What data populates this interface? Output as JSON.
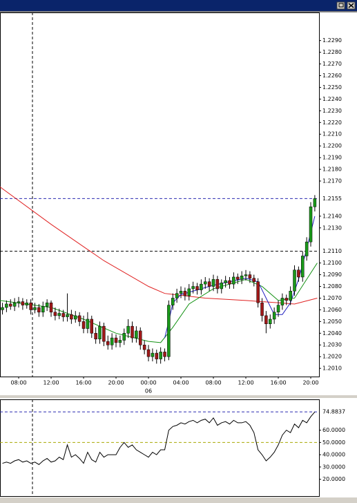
{
  "chart_data": [
    {
      "type": "candlestick",
      "xlim": [
        5.7,
        45.02
      ],
      "ylim": [
        1.2003,
        1.2314
      ],
      "xticks": [
        {
          "value": 8,
          "label": "08:00"
        },
        {
          "value": 12,
          "label": "12:00"
        },
        {
          "value": 16,
          "label": "16:00"
        },
        {
          "value": 20,
          "label": "20:00"
        },
        {
          "value": 24,
          "label": "00:00"
        },
        {
          "value": 28,
          "label": "04:00"
        },
        {
          "value": 32,
          "label": "08:00"
        },
        {
          "value": 36,
          "label": "12:00"
        },
        {
          "value": 40,
          "label": "16:00"
        },
        {
          "value": 44,
          "label": "20:00"
        }
      ],
      "date_labels": [
        {
          "value": 24,
          "label": "06"
        }
      ],
      "yticks": [
        {
          "value": 1.229,
          "label": "1.2290"
        },
        {
          "value": 1.228,
          "label": "1.2280"
        },
        {
          "value": 1.227,
          "label": "1.2270"
        },
        {
          "value": 1.226,
          "label": "1.2260"
        },
        {
          "value": 1.225,
          "label": "1.2250"
        },
        {
          "value": 1.224,
          "label": "1.2240"
        },
        {
          "value": 1.223,
          "label": "1.2230"
        },
        {
          "value": 1.222,
          "label": "1.2220"
        },
        {
          "value": 1.221,
          "label": "1.2210"
        },
        {
          "value": 1.22,
          "label": "1.2200"
        },
        {
          "value": 1.219,
          "label": "1.2190"
        },
        {
          "value": 1.218,
          "label": "1.2180"
        },
        {
          "value": 1.217,
          "label": "1.2170"
        },
        {
          "value": 1.214,
          "label": "1.2140"
        },
        {
          "value": 1.213,
          "label": "1.2130"
        },
        {
          "value": 1.21,
          "label": "1.2100"
        },
        {
          "value": 1.209,
          "label": "1.2090"
        },
        {
          "value": 1.208,
          "label": "1.2080"
        },
        {
          "value": 1.207,
          "label": "1.2070"
        },
        {
          "value": 1.206,
          "label": "1.2060"
        },
        {
          "value": 1.205,
          "label": "1.2050"
        },
        {
          "value": 1.204,
          "label": "1.2040"
        },
        {
          "value": 1.203,
          "label": "1.2030"
        },
        {
          "value": 1.202,
          "label": "1.2020"
        },
        {
          "value": 1.201,
          "label": "1.2010"
        }
      ],
      "levels": [
        {
          "value": 1.2155,
          "label": "1.2155",
          "color": "#2828b0"
        },
        {
          "value": 1.211,
          "label": "1.2110",
          "color": "#000000"
        }
      ],
      "crosshair_x": 9.7,
      "up_color": "#1a9a1a",
      "down_color": "#a01818",
      "x": [
        6,
        6.5,
        7,
        7.5,
        8,
        8.5,
        9,
        9.5,
        10,
        10.5,
        11,
        11.5,
        12,
        12.5,
        13,
        13.5,
        14,
        14.5,
        15,
        15.5,
        16,
        16.5,
        17,
        17.5,
        18,
        18.5,
        19,
        19.5,
        20,
        20.5,
        21,
        21.5,
        22,
        22.5,
        23,
        23.5,
        24,
        24.5,
        25,
        25.5,
        26,
        26.5,
        27,
        27.5,
        28,
        28.5,
        29,
        29.5,
        30,
        30.5,
        31,
        31.5,
        32,
        32.5,
        33,
        33.5,
        34,
        34.5,
        35,
        35.5,
        36,
        36.5,
        37,
        37.5,
        38,
        38.5,
        39,
        39.5,
        40,
        40.5,
        41,
        41.5,
        42,
        42.5,
        43,
        43.5,
        44,
        44.5
      ],
      "open": [
        1.206,
        1.2062,
        1.2065,
        1.2063,
        1.2066,
        1.2067,
        1.2064,
        1.2066,
        1.206,
        1.2062,
        1.2058,
        1.2063,
        1.2066,
        1.2058,
        1.2055,
        1.2057,
        1.2054,
        1.2056,
        1.2052,
        1.2055,
        1.205,
        1.2044,
        1.2052,
        1.204,
        1.2035,
        1.2046,
        1.2033,
        1.203,
        1.2036,
        1.2032,
        1.2034,
        1.204,
        1.2046,
        1.2036,
        1.2042,
        1.203,
        1.2026,
        1.202,
        1.2023,
        1.2018,
        1.2024,
        1.202,
        1.2064,
        1.207,
        1.2074,
        1.2076,
        1.2072,
        1.2078,
        1.208,
        1.2077,
        1.2082,
        1.2084,
        1.208,
        1.2086,
        1.2078,
        1.2083,
        1.2085,
        1.2082,
        1.2088,
        1.2086,
        1.2089,
        1.209,
        1.2087,
        1.2084,
        1.2066,
        1.2055,
        1.2048,
        1.2052,
        1.2058,
        1.2064,
        1.207,
        1.2068,
        1.2076,
        1.2094,
        1.2088,
        1.2106,
        1.2118,
        1.2148
      ],
      "high": [
        1.2066,
        1.2068,
        1.2069,
        1.207,
        1.2071,
        1.207,
        1.2069,
        1.2069,
        1.2066,
        1.2065,
        1.2067,
        1.2069,
        1.2068,
        1.2062,
        1.2061,
        1.206,
        1.2074,
        1.206,
        1.2059,
        1.2058,
        1.2055,
        1.2058,
        1.2055,
        1.2045,
        1.205,
        1.2049,
        1.2038,
        1.204,
        1.2039,
        1.2038,
        1.2044,
        1.2052,
        1.205,
        1.2046,
        1.2045,
        1.2034,
        1.203,
        1.2027,
        1.2026,
        1.2028,
        1.2027,
        1.2068,
        1.2074,
        1.2078,
        1.208,
        1.2079,
        1.2082,
        1.2084,
        1.2083,
        1.2086,
        1.2088,
        1.2087,
        1.209,
        1.2089,
        1.2086,
        1.2089,
        1.2088,
        1.2092,
        1.2091,
        1.2093,
        1.2094,
        1.2093,
        1.209,
        1.2087,
        1.207,
        1.2059,
        1.2056,
        1.2062,
        1.2068,
        1.2074,
        1.2073,
        1.208,
        1.2098,
        1.2097,
        1.211,
        1.2122,
        1.2152,
        1.2158
      ],
      "low": [
        1.2056,
        1.2058,
        1.206,
        1.2059,
        1.2062,
        1.206,
        1.2061,
        1.2056,
        1.2057,
        1.2054,
        1.2054,
        1.2059,
        1.2054,
        1.2051,
        1.2052,
        1.205,
        1.205,
        1.2048,
        1.2049,
        1.2046,
        1.204,
        1.204,
        1.2036,
        1.2031,
        1.2031,
        1.2029,
        1.2026,
        1.2026,
        1.2028,
        1.2028,
        1.203,
        1.2036,
        1.2032,
        1.2032,
        1.2026,
        1.2022,
        1.2016,
        1.2016,
        1.2014,
        1.2014,
        1.2016,
        1.2017,
        1.206,
        1.2066,
        1.207,
        1.2068,
        1.2068,
        1.2074,
        1.2073,
        1.2073,
        1.2078,
        1.2076,
        1.2076,
        1.2074,
        1.2074,
        1.2079,
        1.2078,
        1.2078,
        1.2082,
        1.2082,
        1.2085,
        1.2083,
        1.208,
        1.2062,
        1.205,
        1.204,
        1.2044,
        1.2048,
        1.2054,
        1.206,
        1.2064,
        1.2064,
        1.2072,
        1.2084,
        1.2084,
        1.2102,
        1.2114,
        1.2144
      ],
      "close": [
        1.2062,
        1.2065,
        1.2063,
        1.2066,
        1.2067,
        1.2064,
        1.2066,
        1.206,
        1.2062,
        1.2058,
        1.2063,
        1.2066,
        1.2058,
        1.2055,
        1.2057,
        1.2054,
        1.2056,
        1.2052,
        1.2055,
        1.205,
        1.2044,
        1.2052,
        1.204,
        1.2035,
        1.2046,
        1.2033,
        1.203,
        1.2036,
        1.2032,
        1.2034,
        1.204,
        1.2046,
        1.2036,
        1.2042,
        1.203,
        1.2026,
        1.202,
        1.2023,
        1.2018,
        1.2024,
        1.202,
        1.2064,
        1.207,
        1.2074,
        1.2076,
        1.2072,
        1.2078,
        1.208,
        1.2077,
        1.2082,
        1.2084,
        1.208,
        1.2086,
        1.2078,
        1.2083,
        1.2085,
        1.2082,
        1.2088,
        1.2086,
        1.2089,
        1.209,
        1.2087,
        1.2084,
        1.2066,
        1.2055,
        1.2048,
        1.2052,
        1.2058,
        1.2064,
        1.207,
        1.2068,
        1.2076,
        1.2094,
        1.2088,
        1.2106,
        1.2118,
        1.2148,
        1.2155
      ],
      "overlays": [
        {
          "color": "#e02020",
          "x": [
            5.7,
            12,
            18.5,
            24,
            26,
            31,
            36,
            40,
            42,
            44.8
          ],
          "values": [
            1.2165,
            1.2133,
            1.2102,
            1.208,
            1.2074,
            1.207,
            1.2068,
            1.2066,
            1.2065,
            1.207
          ]
        },
        {
          "color": "#109010",
          "x": [
            5.7,
            12,
            16,
            20,
            24,
            25.5,
            27,
            29,
            32,
            36,
            38,
            40,
            42,
            44.8
          ],
          "values": [
            1.2068,
            1.2062,
            1.2052,
            1.204,
            1.2033,
            1.2032,
            1.2045,
            1.2065,
            1.2078,
            1.2086,
            1.208,
            1.2068,
            1.207,
            1.21
          ]
        },
        {
          "color": "#2020c0",
          "x": [
            26,
            26.5,
            27,
            28,
            30,
            32,
            34,
            36,
            37.5,
            38.5,
            39.5,
            40.5,
            41.5,
            42.5,
            43.5,
            44.5
          ],
          "values": [
            1.2036,
            1.205,
            1.2066,
            1.2073,
            1.2077,
            1.2081,
            1.2084,
            1.2087,
            1.2084,
            1.207,
            1.2056,
            1.2056,
            1.2066,
            1.2086,
            1.2112,
            1.214
          ]
        }
      ]
    },
    {
      "type": "line",
      "xlim": [
        5.7,
        45.02
      ],
      "ylim": [
        6.3,
        85.1
      ],
      "yticks": [
        {
          "value": 60,
          "label": "60.0000"
        },
        {
          "value": 50,
          "label": "50.0000"
        },
        {
          "value": 40,
          "label": "40.0000"
        },
        {
          "value": 30,
          "label": "30.0000"
        },
        {
          "value": 20,
          "label": "20.0000"
        }
      ],
      "levels": [
        {
          "value": 74.8837,
          "label": "74.8837",
          "color": "#2828b0"
        },
        {
          "value": 50,
          "color": "#a8a800"
        }
      ],
      "crosshair_x": 9.7,
      "color": "#000000",
      "x": [
        6,
        6.5,
        7,
        7.5,
        8,
        8.5,
        9,
        9.5,
        10,
        10.5,
        11,
        11.5,
        12,
        12.5,
        13,
        13.5,
        14,
        14.5,
        15,
        15.5,
        16,
        16.5,
        17,
        17.5,
        18,
        18.5,
        19,
        19.5,
        20,
        20.5,
        21,
        21.5,
        22,
        22.5,
        23,
        23.5,
        24,
        24.5,
        25,
        25.5,
        26,
        26.5,
        27,
        27.5,
        28,
        28.5,
        29,
        29.5,
        30,
        30.5,
        31,
        31.5,
        32,
        32.5,
        33,
        33.5,
        34,
        34.5,
        35,
        35.5,
        36,
        36.5,
        37,
        37.5,
        38,
        38.5,
        39,
        39.5,
        40,
        40.5,
        41,
        41.5,
        42,
        42.5,
        43,
        43.5,
        44,
        44.5
      ],
      "values": [
        33,
        34,
        33,
        35,
        36,
        34,
        35,
        33,
        34,
        32,
        35,
        37,
        34,
        35,
        38,
        36,
        48,
        38,
        40,
        37,
        33,
        42,
        36,
        34,
        42,
        38,
        40,
        40,
        40,
        46,
        50,
        46,
        48,
        44,
        42,
        40,
        38,
        42,
        40,
        44,
        44,
        60,
        63,
        64,
        66,
        65,
        67,
        68,
        66,
        68,
        69,
        66,
        70,
        64,
        66,
        67,
        65,
        68,
        66,
        66,
        67,
        64,
        58,
        44,
        40,
        35,
        38,
        42,
        48,
        56,
        60,
        58,
        65,
        62,
        68,
        66,
        71,
        74.8837
      ]
    }
  ]
}
